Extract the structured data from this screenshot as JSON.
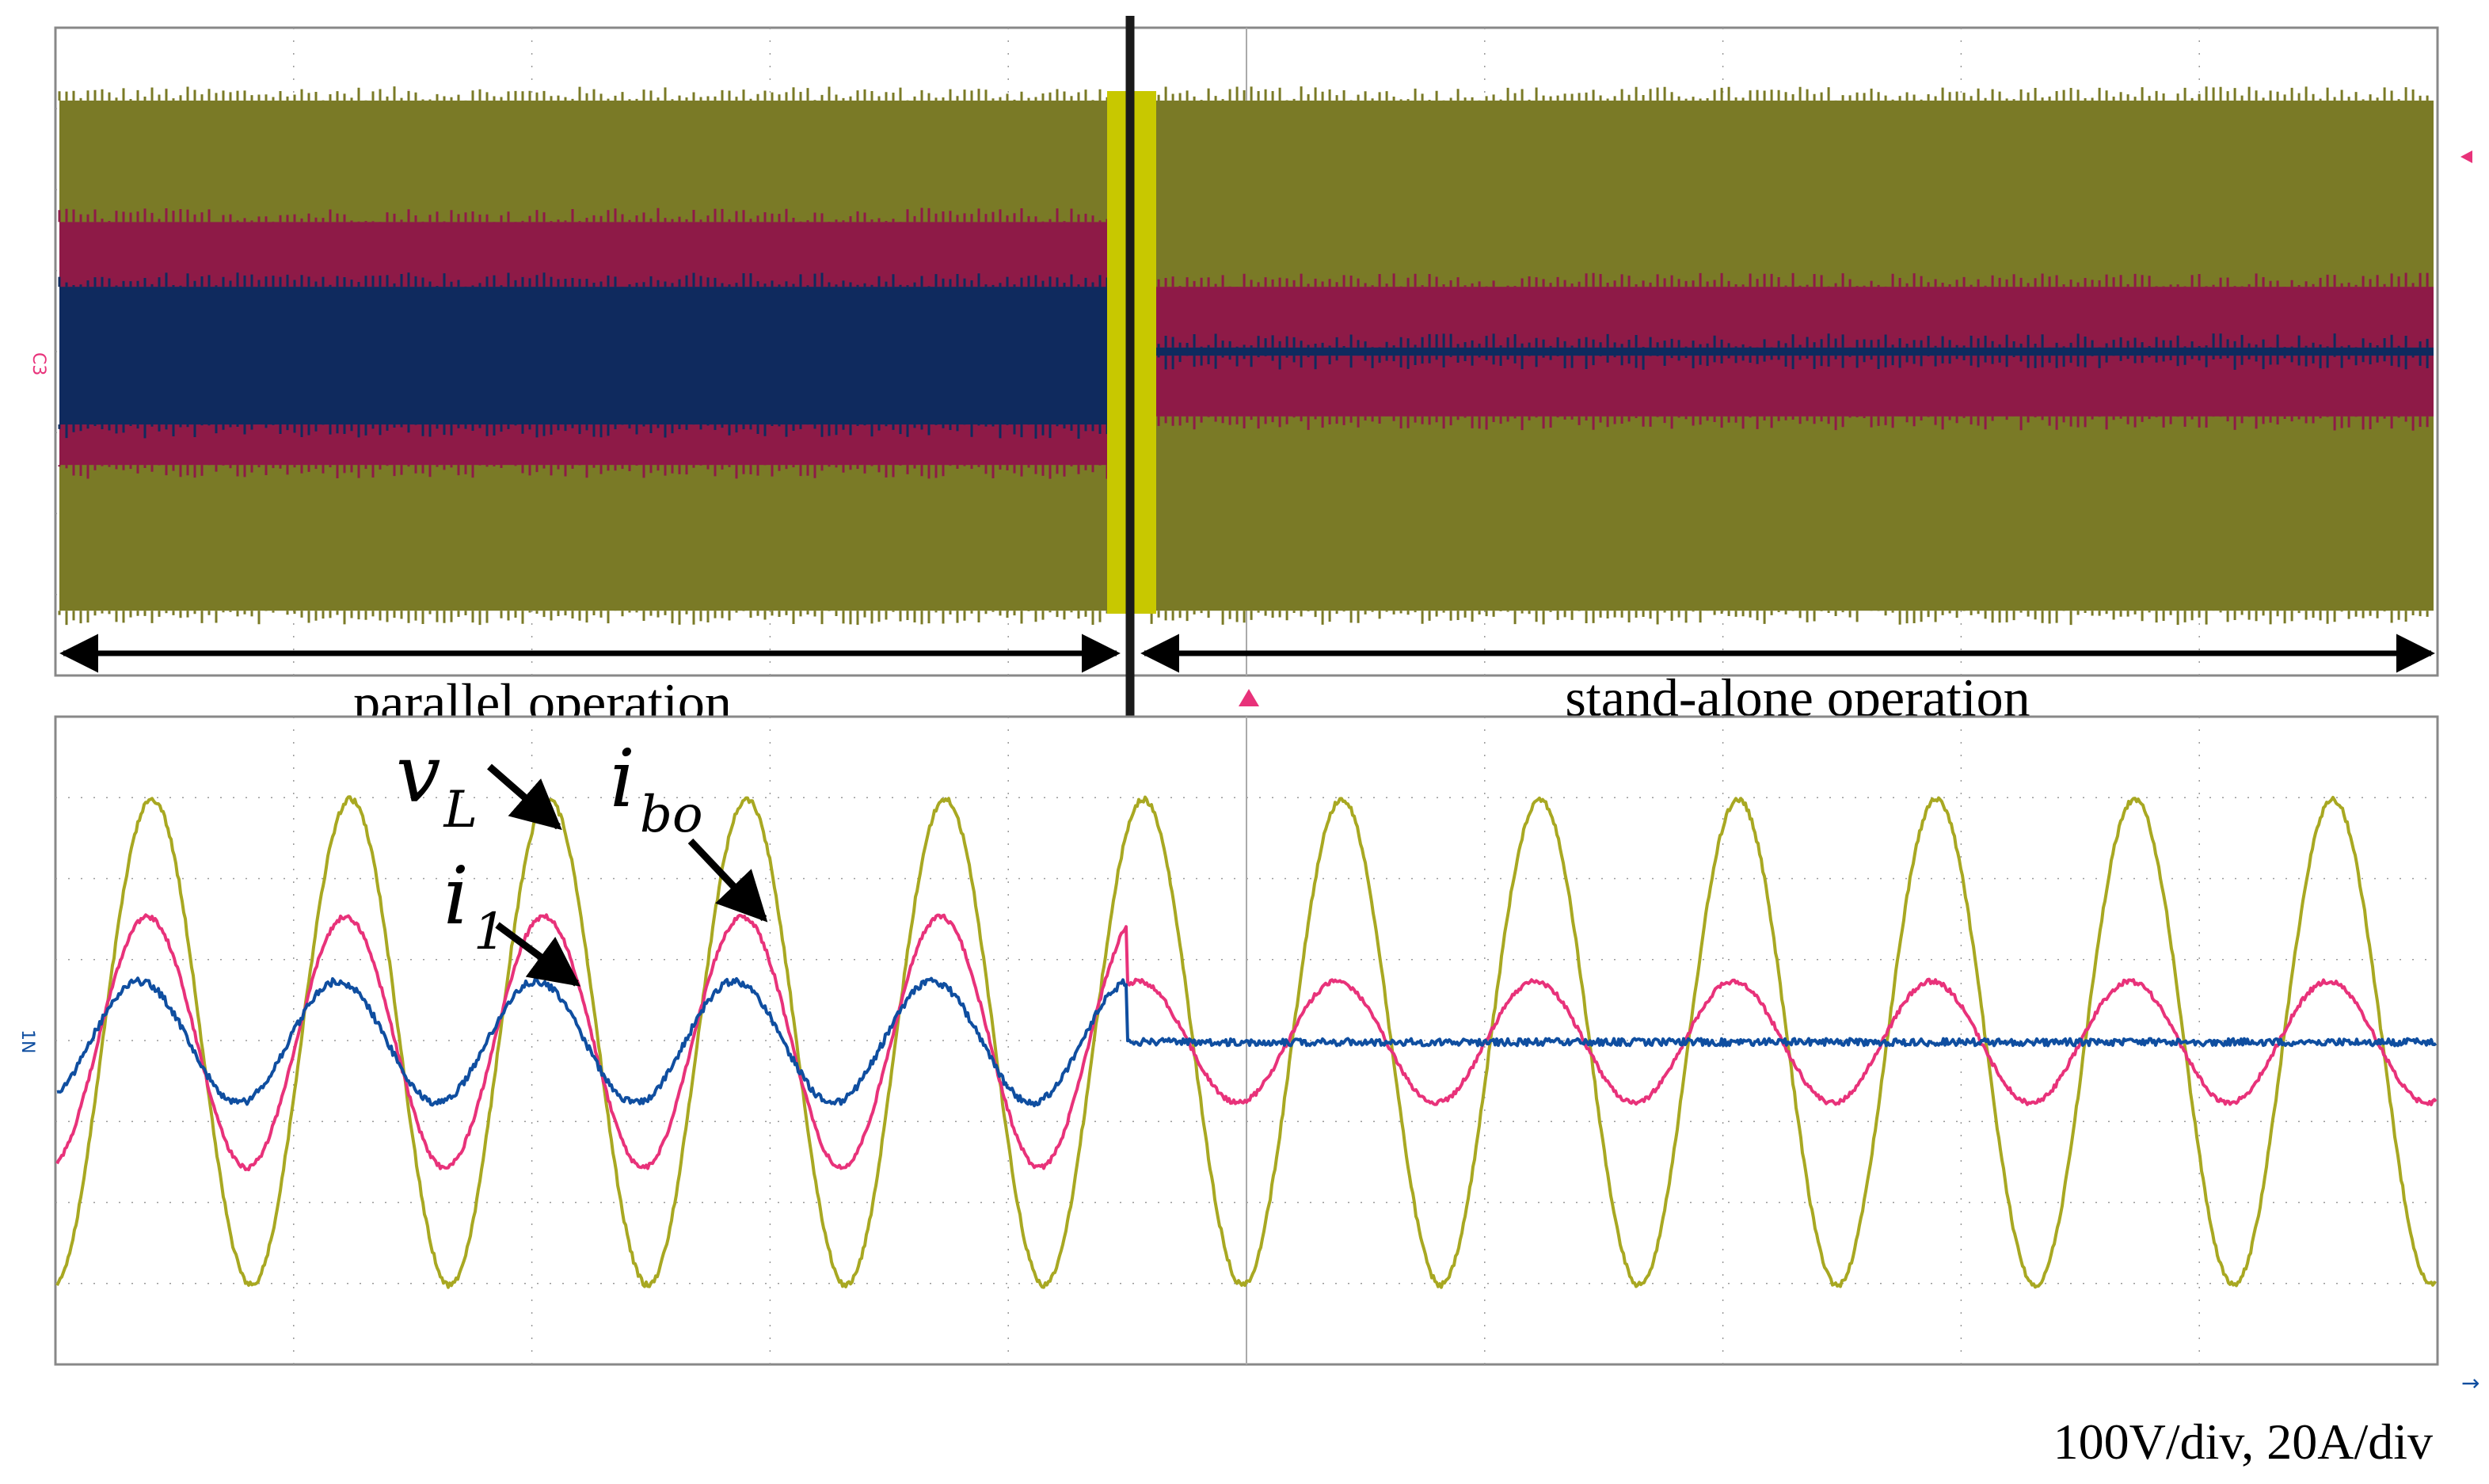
{
  "chart_data": [
    {
      "type": "line",
      "panel": "top (compressed time scale)",
      "series": [
        {
          "id": "vL",
          "color": "#7a7a26",
          "envelope_divs": {
            "before": [
              -3.2,
              3.1
            ],
            "after": [
              -3.2,
              3.1
            ]
          }
        },
        {
          "id": "ibo",
          "color": "#8e1a47",
          "envelope_divs": {
            "before": [
              -1.4,
              1.6
            ],
            "after": [
              -0.8,
              0.8
            ]
          }
        },
        {
          "id": "i1",
          "color": "#0f2a5e",
          "envelope_divs": {
            "before": [
              -0.9,
              0.8
            ],
            "after": [
              -0.05,
              0.05
            ]
          }
        }
      ],
      "transition_fraction": 0.45,
      "annotations": [
        "parallel operation",
        "stand-alone operation"
      ]
    },
    {
      "type": "line",
      "panel": "bottom (expanded time scale)",
      "cycles": 12,
      "transition_cycle": 5.4,
      "series": [
        {
          "id": "vL",
          "label": "v_L",
          "color": "#a8a822",
          "amplitude_divs": {
            "before": 3.0,
            "after": 3.0
          }
        },
        {
          "id": "ibo",
          "label": "i_bo",
          "color": "#e8327a",
          "amplitude_divs": {
            "before": 1.55,
            "after": 0.75
          }
        },
        {
          "id": "i1",
          "label": "i_1",
          "color": "#0f4ea0",
          "amplitude_divs": {
            "before": 0.75,
            "after": 0.0
          }
        }
      ],
      "scale_text": "100V/div, 20A/div"
    }
  ],
  "labels": {
    "parallel": "parallel operation",
    "standalone": "stand-alone operation",
    "vL_main": "v",
    "vL_sub": "L",
    "ibo_main": "i",
    "ibo_sub": "bo",
    "i1_main": "i",
    "i1_sub": "1",
    "scale": "100V/div, 20A/div",
    "ch_marker_top": "C3",
    "ch_marker_bottom": "1N"
  },
  "colors": {
    "vL_dense": "#7a7a26",
    "ibo_dense": "#8e1a47",
    "i1_dense": "#0f2a5e",
    "vL": "#a8a822",
    "ibo": "#e8327a",
    "i1": "#0f4ea0",
    "transition_bar": "#c8c800",
    "marker": "#e8327a",
    "arrow": "#000000"
  }
}
